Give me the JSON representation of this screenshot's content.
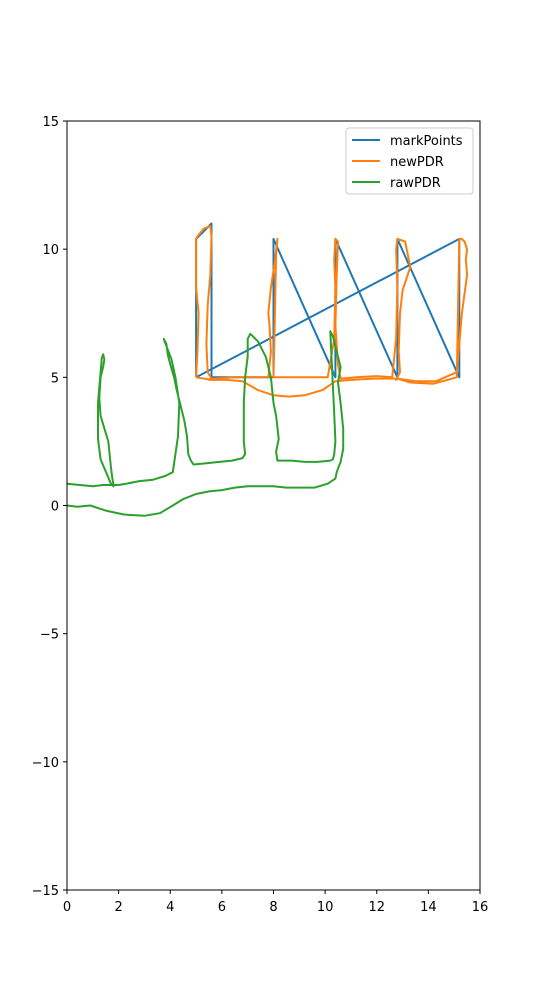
{
  "chart_data": {
    "type": "line",
    "xlim": [
      0,
      16
    ],
    "ylim": [
      -15,
      15
    ],
    "xticks": [
      0,
      2,
      4,
      6,
      8,
      10,
      12,
      14,
      16
    ],
    "yticks": [
      -15,
      -10,
      -5,
      0,
      5,
      10,
      15
    ],
    "grid": false,
    "legend_position": "top-right",
    "series": [
      {
        "name": "markPoints",
        "color": "#1f77b4",
        "x": [
          5.0,
          5.0,
          5.6,
          5.6,
          8.0,
          8.0,
          10.4,
          10.4,
          12.8,
          12.8,
          15.2,
          15.2,
          5.0
        ],
        "y": [
          5.0,
          10.4,
          11.0,
          5.0,
          5.0,
          10.4,
          5.0,
          10.4,
          5.0,
          10.4,
          5.0,
          10.4,
          5.0
        ]
      },
      {
        "name": "newPDR",
        "color": "#ff7f0e",
        "x": [
          5.0,
          5.05,
          5.1,
          5.0,
          5.0,
          5.05,
          5.3,
          5.55,
          5.6,
          5.55,
          5.45,
          5.4,
          5.45,
          5.6,
          5.5,
          5.7,
          6.5,
          7.3,
          7.8,
          7.9,
          7.85,
          7.8,
          7.9,
          8.05,
          8.15,
          8.1,
          8.05,
          8.0,
          8.5,
          9.3,
          10.1,
          10.35,
          10.4,
          10.35,
          10.4,
          10.5,
          10.45,
          10.4,
          10.5,
          10.6,
          11.2,
          12.0,
          12.6,
          12.75,
          12.8,
          12.75,
          12.8,
          13.1,
          13.3,
          13.0,
          12.9,
          12.85,
          12.9,
          12.75,
          12.8,
          13.5,
          14.3,
          15.1,
          15.2,
          15.3,
          15.5,
          15.45,
          15.5,
          15.4,
          15.3,
          15.2,
          15.1,
          14.2,
          13.3,
          12.8,
          11.9,
          11.0,
          10.4,
          9.9,
          9.2,
          8.6,
          8.0,
          7.4,
          6.8,
          6.2,
          5.6,
          5.0
        ],
        "y": [
          5.0,
          6.0,
          7.5,
          8.5,
          10.4,
          10.5,
          10.8,
          10.9,
          10.5,
          9.0,
          7.8,
          6.3,
          5.2,
          4.95,
          4.9,
          4.95,
          5.0,
          5.0,
          5.0,
          6.0,
          7.0,
          7.5,
          8.5,
          9.5,
          10.4,
          9.8,
          7.2,
          5.0,
          5.0,
          5.0,
          5.0,
          6.5,
          8.5,
          9.6,
          10.4,
          10.3,
          9.0,
          7.0,
          5.5,
          4.95,
          5.0,
          5.05,
          5.0,
          6.5,
          8.5,
          10.0,
          10.4,
          10.3,
          9.3,
          8.4,
          7.5,
          6.0,
          5.2,
          4.9,
          4.95,
          4.85,
          4.85,
          5.2,
          6.3,
          7.5,
          9.0,
          9.6,
          10.0,
          10.3,
          10.4,
          10.4,
          5.0,
          4.75,
          4.8,
          4.95,
          4.95,
          4.9,
          4.85,
          4.5,
          4.3,
          4.25,
          4.3,
          4.5,
          4.85,
          4.9,
          4.9,
          5.0
        ]
      },
      {
        "name": "rawPDR",
        "color": "#2ca02c",
        "x": [
          0.0,
          0.4,
          0.9,
          1.5,
          2.2,
          3.0,
          3.6,
          4.1,
          4.5,
          5.0,
          5.5,
          6.0,
          6.5,
          7.0,
          7.5,
          8.0,
          8.5,
          9.0,
          9.6,
          10.1,
          10.4,
          10.45,
          10.6,
          10.7,
          10.7,
          10.6,
          10.5,
          10.6,
          10.45,
          10.3,
          10.2,
          10.25,
          10.35,
          10.4,
          10.35,
          10.3,
          10.2,
          9.7,
          9.2,
          8.7,
          8.15,
          8.1,
          8.2,
          8.1,
          8.0,
          7.9,
          7.7,
          7.4,
          7.1,
          7.0,
          7.0,
          6.9,
          6.85,
          6.85,
          6.9,
          6.8,
          6.4,
          5.9,
          5.4,
          4.9,
          4.8,
          4.7,
          4.65,
          4.55,
          4.4,
          4.25,
          4.15,
          4.0,
          3.9,
          3.85,
          3.75,
          3.8,
          4.05,
          4.2,
          4.35,
          4.3,
          4.1,
          3.8,
          3.3,
          2.8,
          2.3,
          2.0,
          1.8,
          1.75,
          1.7,
          1.65,
          1.6,
          1.45,
          1.3,
          1.25,
          1.3,
          1.4,
          1.45,
          1.4,
          1.35,
          1.2,
          1.2,
          1.3,
          1.7,
          1.8,
          1.75,
          1.6,
          1.4,
          1.0,
          0.5,
          0.0
        ],
        "y": [
          0.0,
          -0.05,
          0.0,
          -0.2,
          -0.35,
          -0.4,
          -0.3,
          0.0,
          0.25,
          0.45,
          0.55,
          0.6,
          0.7,
          0.75,
          0.75,
          0.75,
          0.7,
          0.7,
          0.7,
          0.85,
          1.05,
          1.3,
          1.7,
          2.2,
          3.0,
          4.0,
          4.8,
          5.4,
          6.0,
          6.6,
          6.8,
          5.7,
          3.6,
          2.5,
          2.0,
          1.8,
          1.75,
          1.7,
          1.7,
          1.75,
          1.75,
          2.1,
          2.6,
          3.5,
          4.0,
          5.0,
          5.8,
          6.4,
          6.7,
          6.5,
          5.8,
          5.0,
          4.0,
          2.5,
          2.0,
          1.85,
          1.75,
          1.7,
          1.65,
          1.6,
          1.75,
          2.0,
          2.7,
          3.3,
          3.9,
          4.5,
          5.0,
          5.5,
          5.9,
          6.3,
          6.5,
          6.35,
          5.7,
          5.0,
          4.0,
          2.7,
          1.3,
          1.15,
          1.0,
          0.95,
          0.85,
          0.8,
          0.8,
          1.1,
          1.5,
          2.0,
          2.5,
          3.0,
          3.5,
          4.2,
          5.0,
          5.4,
          5.7,
          5.9,
          5.75,
          4.0,
          2.6,
          1.8,
          0.85,
          0.75,
          0.8,
          0.8,
          0.8,
          0.75,
          0.8,
          0.85
        ]
      }
    ]
  }
}
